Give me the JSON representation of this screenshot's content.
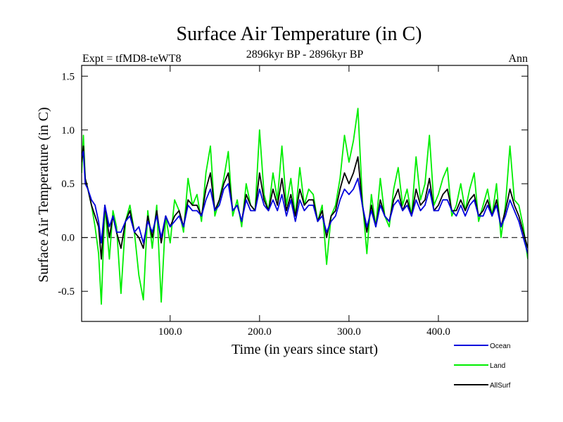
{
  "chart_data": {
    "type": "line",
    "title": "Surface Air Temperature (in C)",
    "subtitle": "2896kyr BP - 2896kyr BP",
    "expt_label": "Expt = tfMD8-teWT8",
    "season_label": "Ann",
    "xlabel": "Time (in years since start)",
    "ylabel": "Surface Air Temperature (in C)",
    "xlim": [
      1,
      500
    ],
    "ylim": [
      -0.78,
      1.6
    ],
    "x_ticks": [
      100,
      200,
      300,
      400
    ],
    "x_tick_labels": [
      "100.0",
      "200.0",
      "300.0",
      "400.0"
    ],
    "y_ticks": [
      -0.5,
      0.0,
      0.5,
      1.0,
      1.5
    ],
    "y_tick_labels": [
      "-0.5",
      "0.0",
      "0.5",
      "1.0",
      "1.5"
    ],
    "reference_line": 0.0,
    "legend_position": "bottom-right, below plot",
    "series": [
      {
        "name": "Land",
        "color": "#00ee00",
        "x": [
          1,
          3,
          5,
          8,
          12,
          16,
          20,
          23,
          27,
          32,
          36,
          40,
          45,
          50,
          55,
          60,
          65,
          70,
          75,
          80,
          85,
          90,
          95,
          100,
          105,
          110,
          115,
          120,
          125,
          130,
          135,
          140,
          145,
          150,
          155,
          160,
          165,
          170,
          175,
          180,
          185,
          190,
          195,
          200,
          205,
          210,
          215,
          220,
          225,
          230,
          235,
          240,
          245,
          250,
          255,
          260,
          265,
          270,
          275,
          280,
          285,
          290,
          295,
          300,
          305,
          310,
          315,
          320,
          325,
          330,
          335,
          340,
          345,
          350,
          355,
          360,
          365,
          370,
          375,
          380,
          385,
          390,
          395,
          400,
          405,
          410,
          415,
          420,
          425,
          430,
          435,
          440,
          445,
          450,
          455,
          460,
          465,
          470,
          475,
          480,
          485,
          490,
          495,
          500
        ],
        "values": [
          0.6,
          0.95,
          0.55,
          0.45,
          0.3,
          0.1,
          -0.15,
          -0.62,
          0.3,
          -0.2,
          0.25,
          0.1,
          -0.52,
          0.15,
          0.3,
          0.05,
          -0.35,
          -0.58,
          0.25,
          -0.1,
          0.3,
          -0.6,
          0.2,
          -0.05,
          0.35,
          0.25,
          0.05,
          0.55,
          0.3,
          0.4,
          0.15,
          0.6,
          0.85,
          0.2,
          0.35,
          0.55,
          0.8,
          0.2,
          0.35,
          0.1,
          0.5,
          0.3,
          0.25,
          1.0,
          0.4,
          0.25,
          0.6,
          0.35,
          0.85,
          0.3,
          0.55,
          0.2,
          0.65,
          0.3,
          0.45,
          0.4,
          0.15,
          0.3,
          -0.25,
          0.2,
          0.3,
          0.55,
          0.95,
          0.7,
          0.9,
          1.2,
          0.35,
          -0.15,
          0.4,
          0.1,
          0.55,
          0.2,
          0.1,
          0.45,
          0.65,
          0.3,
          0.45,
          0.2,
          0.75,
          0.35,
          0.5,
          0.95,
          0.3,
          0.4,
          0.55,
          0.65,
          0.2,
          0.3,
          0.5,
          0.25,
          0.45,
          0.6,
          0.15,
          0.3,
          0.45,
          0.2,
          0.5,
          0.0,
          0.3,
          0.85,
          0.35,
          0.3,
          0.1,
          -0.2
        ]
      },
      {
        "name": "AllSurf",
        "color": "#000000",
        "x": [
          1,
          3,
          5,
          8,
          12,
          16,
          20,
          23,
          27,
          32,
          36,
          40,
          45,
          50,
          55,
          60,
          65,
          70,
          75,
          80,
          85,
          90,
          95,
          100,
          105,
          110,
          115,
          120,
          125,
          130,
          135,
          140,
          145,
          150,
          155,
          160,
          165,
          170,
          175,
          180,
          185,
          190,
          195,
          200,
          205,
          210,
          215,
          220,
          225,
          230,
          235,
          240,
          245,
          250,
          255,
          260,
          265,
          270,
          275,
          280,
          285,
          290,
          295,
          300,
          305,
          310,
          315,
          320,
          325,
          330,
          335,
          340,
          345,
          350,
          355,
          360,
          365,
          370,
          375,
          380,
          385,
          390,
          395,
          400,
          405,
          410,
          415,
          420,
          425,
          430,
          435,
          440,
          445,
          450,
          455,
          460,
          465,
          470,
          475,
          480,
          485,
          490,
          495,
          500
        ],
        "values": [
          0.7,
          0.85,
          0.55,
          0.45,
          0.3,
          0.2,
          0.1,
          -0.2,
          0.3,
          0.0,
          0.2,
          0.05,
          -0.1,
          0.15,
          0.25,
          0.05,
          0.0,
          -0.1,
          0.2,
          0.0,
          0.25,
          -0.05,
          0.2,
          0.1,
          0.2,
          0.25,
          0.1,
          0.35,
          0.3,
          0.3,
          0.2,
          0.45,
          0.6,
          0.25,
          0.35,
          0.5,
          0.6,
          0.25,
          0.3,
          0.15,
          0.4,
          0.3,
          0.25,
          0.6,
          0.35,
          0.25,
          0.45,
          0.3,
          0.55,
          0.25,
          0.4,
          0.2,
          0.45,
          0.3,
          0.35,
          0.35,
          0.15,
          0.25,
          0.0,
          0.2,
          0.25,
          0.45,
          0.6,
          0.5,
          0.6,
          0.75,
          0.3,
          0.05,
          0.3,
          0.1,
          0.35,
          0.2,
          0.15,
          0.35,
          0.45,
          0.25,
          0.35,
          0.2,
          0.45,
          0.3,
          0.35,
          0.55,
          0.25,
          0.3,
          0.4,
          0.45,
          0.25,
          0.25,
          0.35,
          0.25,
          0.35,
          0.4,
          0.2,
          0.25,
          0.35,
          0.2,
          0.35,
          0.1,
          0.25,
          0.45,
          0.3,
          0.2,
          0.05,
          -0.1
        ]
      },
      {
        "name": "Ocean",
        "color": "#0000dd",
        "x": [
          1,
          3,
          5,
          8,
          12,
          16,
          20,
          23,
          27,
          32,
          36,
          40,
          45,
          50,
          55,
          60,
          65,
          70,
          75,
          80,
          85,
          90,
          95,
          100,
          105,
          110,
          115,
          120,
          125,
          130,
          135,
          140,
          145,
          150,
          155,
          160,
          165,
          170,
          175,
          180,
          185,
          190,
          195,
          200,
          205,
          210,
          215,
          220,
          225,
          230,
          235,
          240,
          245,
          250,
          255,
          260,
          265,
          270,
          275,
          280,
          285,
          290,
          295,
          300,
          305,
          310,
          315,
          320,
          325,
          330,
          335,
          340,
          345,
          350,
          355,
          360,
          365,
          370,
          375,
          380,
          385,
          390,
          395,
          400,
          405,
          410,
          415,
          420,
          425,
          430,
          435,
          440,
          445,
          450,
          455,
          460,
          465,
          470,
          475,
          480,
          485,
          490,
          495,
          500
        ],
        "values": [
          0.75,
          0.8,
          0.5,
          0.45,
          0.35,
          0.3,
          0.15,
          -0.05,
          0.3,
          0.1,
          0.2,
          0.05,
          0.05,
          0.15,
          0.2,
          0.05,
          0.1,
          -0.05,
          0.15,
          0.05,
          0.2,
          0.0,
          0.2,
          0.1,
          0.15,
          0.2,
          0.1,
          0.3,
          0.25,
          0.25,
          0.2,
          0.35,
          0.45,
          0.25,
          0.3,
          0.45,
          0.5,
          0.25,
          0.3,
          0.15,
          0.35,
          0.25,
          0.25,
          0.45,
          0.3,
          0.25,
          0.35,
          0.25,
          0.4,
          0.2,
          0.35,
          0.15,
          0.35,
          0.25,
          0.3,
          0.3,
          0.15,
          0.2,
          0.05,
          0.15,
          0.2,
          0.35,
          0.45,
          0.4,
          0.45,
          0.55,
          0.3,
          0.1,
          0.25,
          0.1,
          0.3,
          0.2,
          0.15,
          0.3,
          0.35,
          0.25,
          0.3,
          0.2,
          0.35,
          0.25,
          0.3,
          0.45,
          0.25,
          0.25,
          0.35,
          0.35,
          0.25,
          0.2,
          0.3,
          0.2,
          0.3,
          0.35,
          0.2,
          0.2,
          0.3,
          0.2,
          0.3,
          0.1,
          0.2,
          0.35,
          0.25,
          0.15,
          0.0,
          -0.15
        ]
      }
    ]
  }
}
